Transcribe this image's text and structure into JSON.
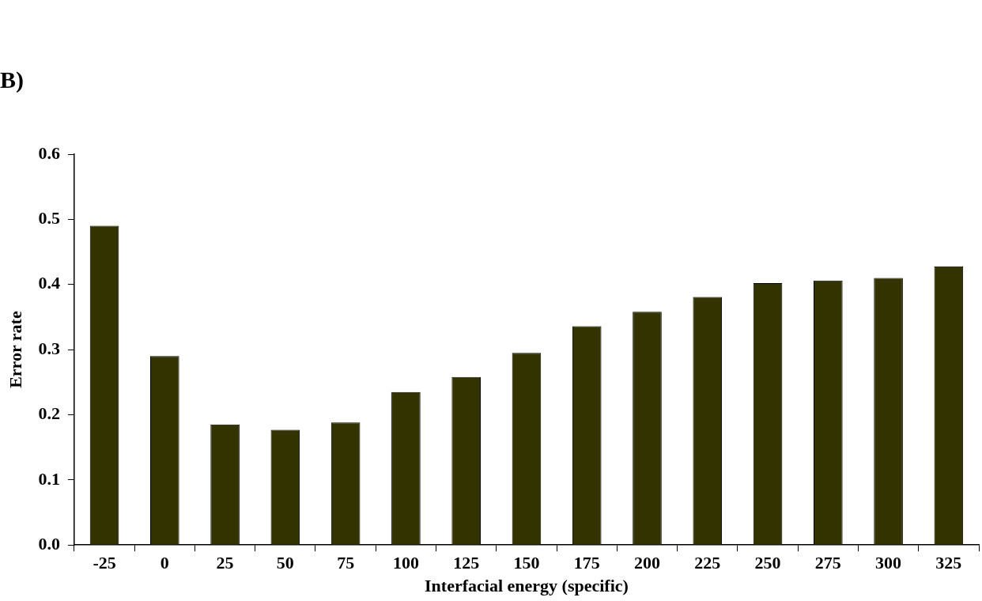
{
  "chart_data": {
    "type": "bar",
    "categories": [
      "-25",
      "0",
      "25",
      "50",
      "75",
      "100",
      "125",
      "150",
      "175",
      "200",
      "225",
      "250",
      "275",
      "300",
      "325"
    ],
    "values": [
      0.49,
      0.29,
      0.185,
      0.177,
      0.188,
      0.235,
      0.258,
      0.295,
      0.336,
      0.358,
      0.381,
      0.402,
      0.406,
      0.41,
      0.428
    ],
    "color": "#333300",
    "xlabel": "Interfacial energy (specific)",
    "ylabel": "Error rate",
    "ylim": [
      0,
      0.6
    ],
    "yticks": [
      {
        "value": 0,
        "label": "0.0"
      },
      {
        "value": 0.1,
        "label": "0.1"
      },
      {
        "value": 0.2,
        "label": "0.2"
      },
      {
        "value": 0.3,
        "label": "0.3"
      },
      {
        "value": 0.4,
        "label": "0.4"
      },
      {
        "value": 0.5,
        "label": "0.5"
      },
      {
        "value": 0.6,
        "label": "0.6"
      }
    ],
    "grid": false,
    "legend": false,
    "annotations": [
      "B)"
    ]
  }
}
